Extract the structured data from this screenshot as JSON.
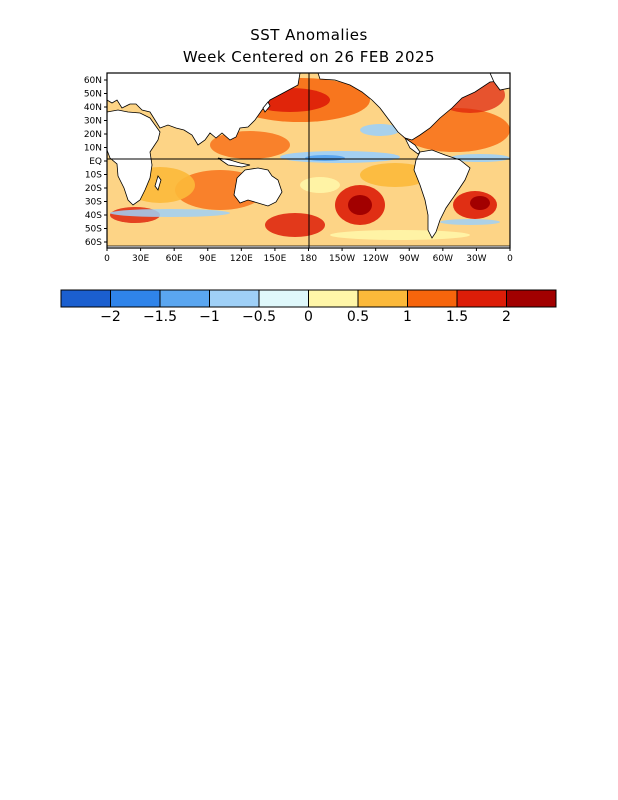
{
  "title": "SST Anomalies",
  "subtitle": "Week Centered on 26 FEB 2025",
  "map": {
    "lat_labels": [
      "60N",
      "50N",
      "40N",
      "30N",
      "20N",
      "10N",
      "EQ",
      "10S",
      "20S",
      "30S",
      "40S",
      "50S",
      "60S"
    ],
    "lon_labels": [
      "0",
      "30E",
      "60E",
      "90E",
      "120E",
      "150E",
      "180",
      "150W",
      "120W",
      "90W",
      "60W",
      "30W",
      "0"
    ]
  },
  "colorbar": {
    "colors": [
      "#1b5fcf",
      "#2f84ea",
      "#5aa6f0",
      "#9fd0f7",
      "#dff8fb",
      "#fff6a8",
      "#fcb93a",
      "#f7650c",
      "#dd1d08",
      "#a20000"
    ],
    "labels": [
      "−2",
      "−1.5",
      "−1",
      "−0.5",
      "0",
      "0.5",
      "1",
      "1.5",
      "2"
    ]
  }
}
